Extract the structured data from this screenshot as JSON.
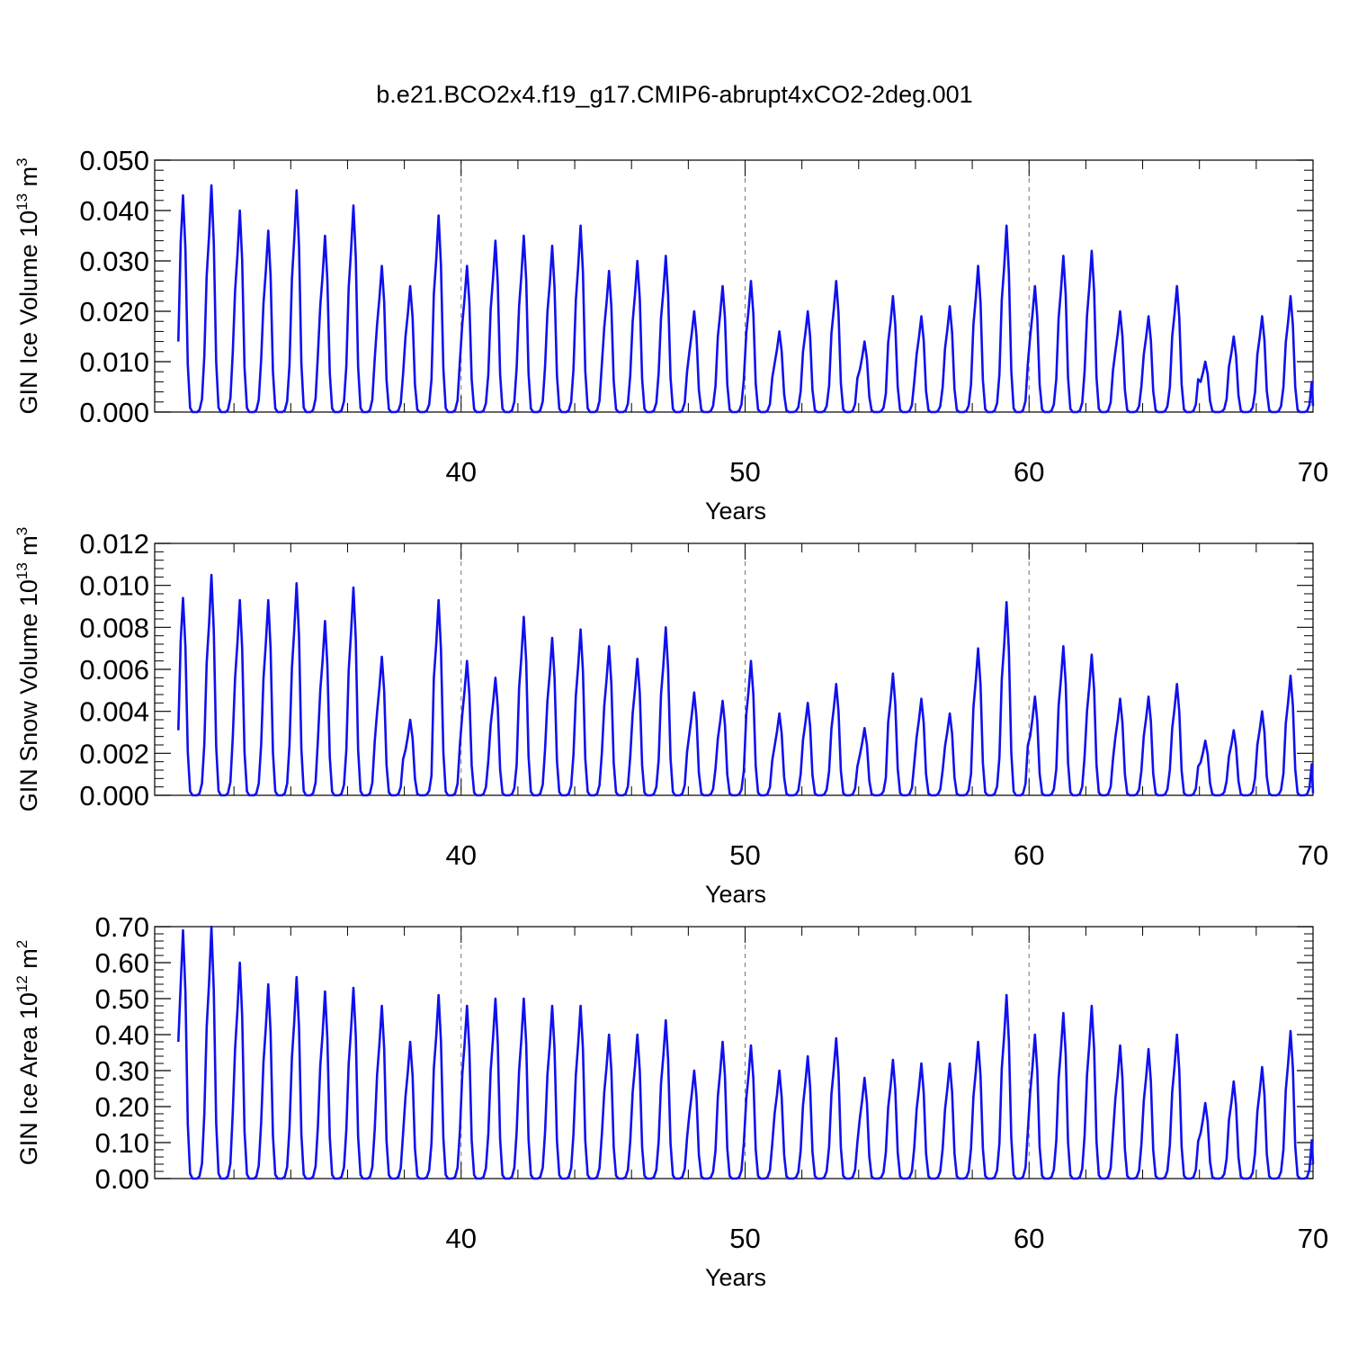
{
  "title": "b.e21.BCO2x4.f19_g17.CMIP6-abrupt4xCO2-2deg.001",
  "colors": {
    "line": "#1010ee",
    "axis": "#000000",
    "grid": "#777777"
  },
  "chart_data": [
    {
      "type": "line",
      "name": "panel-ice-volume",
      "ylabel": "GIN Ice Volume 10",
      "ylabel_exp": "13",
      "ylabel_unit": " m",
      "ylabel_unit_exp": "3",
      "xlabel": "Years",
      "xlim": [
        30,
        70
      ],
      "ylim": [
        0,
        0.05
      ],
      "yticks": [
        0,
        0.01,
        0.02,
        0.03,
        0.04,
        0.05
      ],
      "ytick_labels": [
        "0.000",
        "0.010",
        "0.020",
        "0.030",
        "0.040",
        "0.050"
      ],
      "xticks": [
        40,
        50,
        60,
        70
      ],
      "xtick_labels": [
        "40",
        "50",
        "60",
        "70"
      ],
      "grid_x": [
        40,
        50,
        60
      ],
      "start_value": 0.014,
      "end_value": 0.0012,
      "peaks": [
        0.043,
        0.045,
        0.04,
        0.036,
        0.044,
        0.035,
        0.041,
        0.029,
        0.025,
        0.039,
        0.029,
        0.034,
        0.035,
        0.033,
        0.037,
        0.028,
        0.03,
        0.031,
        0.02,
        0.025,
        0.026,
        0.016,
        0.02,
        0.026,
        0.014,
        0.023,
        0.019,
        0.021,
        0.029,
        0.037,
        0.025,
        0.031,
        0.032,
        0.02,
        0.019,
        0.025,
        0.01,
        0.015,
        0.019,
        0.023
      ]
    },
    {
      "type": "line",
      "name": "panel-snow-volume",
      "ylabel": "GIN Snow Volume 10",
      "ylabel_exp": "13",
      "ylabel_unit": " m",
      "ylabel_unit_exp": "3",
      "xlabel": "Years",
      "xlim": [
        30,
        70
      ],
      "ylim": [
        0,
        0.012
      ],
      "yticks": [
        0,
        0.002,
        0.004,
        0.006,
        0.008,
        0.01,
        0.012
      ],
      "ytick_labels": [
        "0.000",
        "0.002",
        "0.004",
        "0.006",
        "0.008",
        "0.010",
        "0.012"
      ],
      "xticks": [
        40,
        50,
        60,
        70
      ],
      "xtick_labels": [
        "40",
        "50",
        "60",
        "70"
      ],
      "grid_x": [
        40,
        50,
        60
      ],
      "start_value": 0.0031,
      "end_value": 0.0001,
      "peaks": [
        0.0094,
        0.0105,
        0.0093,
        0.0093,
        0.0101,
        0.0083,
        0.0099,
        0.0066,
        0.0036,
        0.0093,
        0.0064,
        0.0056,
        0.0085,
        0.0075,
        0.0079,
        0.0071,
        0.0065,
        0.008,
        0.0049,
        0.0045,
        0.0064,
        0.0039,
        0.0044,
        0.0053,
        0.0032,
        0.0058,
        0.0046,
        0.0039,
        0.007,
        0.0092,
        0.0047,
        0.0071,
        0.0067,
        0.0046,
        0.0047,
        0.0053,
        0.0026,
        0.0031,
        0.004,
        0.0057
      ]
    },
    {
      "type": "line",
      "name": "panel-ice-area",
      "ylabel": "GIN Ice Area 10",
      "ylabel_exp": "12",
      "ylabel_unit": " m",
      "ylabel_unit_exp": "2",
      "xlabel": "Years",
      "xlim": [
        30,
        70
      ],
      "ylim": [
        0,
        0.7
      ],
      "yticks": [
        0,
        0.1,
        0.2,
        0.3,
        0.4,
        0.5,
        0.6,
        0.7
      ],
      "ytick_labels": [
        "0.00",
        "0.10",
        "0.20",
        "0.30",
        "0.40",
        "0.50",
        "0.60",
        "0.70"
      ],
      "xticks": [
        40,
        50,
        60,
        70
      ],
      "xtick_labels": [
        "40",
        "50",
        "60",
        "70"
      ],
      "grid_x": [
        40,
        50,
        60
      ],
      "start_value": 0.38,
      "end_value": 0.04,
      "peaks": [
        0.69,
        0.7,
        0.6,
        0.54,
        0.56,
        0.52,
        0.53,
        0.48,
        0.38,
        0.51,
        0.48,
        0.5,
        0.5,
        0.48,
        0.48,
        0.4,
        0.4,
        0.44,
        0.3,
        0.38,
        0.37,
        0.3,
        0.34,
        0.39,
        0.28,
        0.33,
        0.32,
        0.32,
        0.38,
        0.51,
        0.4,
        0.46,
        0.48,
        0.37,
        0.36,
        0.4,
        0.21,
        0.27,
        0.31,
        0.41
      ]
    }
  ]
}
